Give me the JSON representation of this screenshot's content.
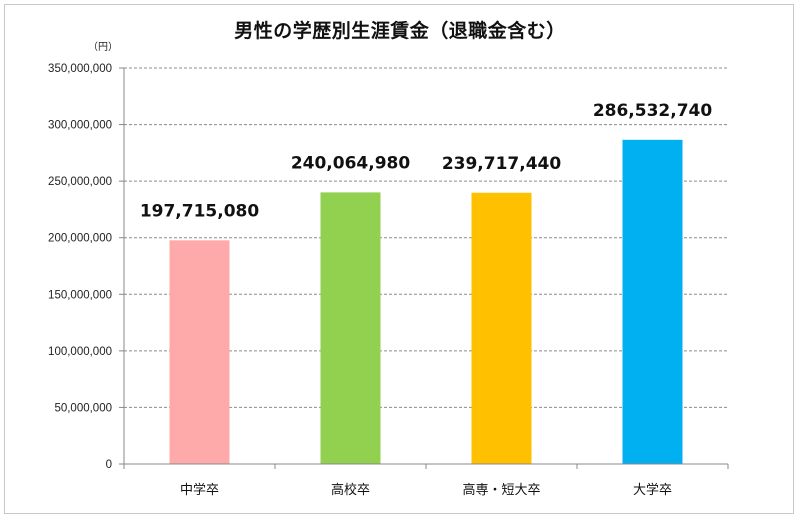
{
  "chart_data": {
    "type": "bar",
    "title": "男性の学歴別生涯賃金（退職金含む）",
    "unit_label": "（円）",
    "categories": [
      "中学卒",
      "高校卒",
      "高専・短大卒",
      "大学卒"
    ],
    "values": [
      197715080,
      240064980,
      239717440,
      286532740
    ],
    "data_labels": [
      "197,715,080",
      "240,064,980",
      "239,717,440",
      "286,532,740"
    ],
    "colors": [
      "#ffaaaa",
      "#92d050",
      "#ffc000",
      "#00b0f0"
    ],
    "ylim": [
      0,
      350000000
    ],
    "yticks": [
      0,
      50000000,
      100000000,
      150000000,
      200000000,
      250000000,
      300000000,
      350000000
    ],
    "ytick_labels": [
      "0",
      "50,000,000",
      "100,000,000",
      "150,000,000",
      "200,000,000",
      "250,000,000",
      "300,000,000",
      "350,000,000"
    ],
    "xlabel": "",
    "ylabel": "",
    "grid": true,
    "legend": "none"
  }
}
